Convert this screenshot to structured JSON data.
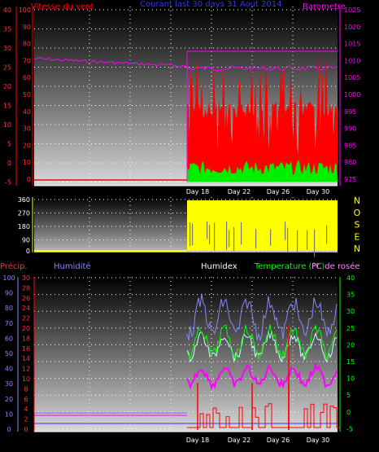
{
  "chart_data": [
    {
      "type": "line",
      "title": "Courant last 30 days 31 Aout 2014",
      "left_axis_label": "Vitesse du vent",
      "right_axis_label": "Barometre",
      "left_ticks_outer": [
        "40",
        "35",
        "30",
        "25",
        "20",
        "15",
        "10",
        "5",
        "0",
        "-5"
      ],
      "left_ticks_inner": [
        "100",
        "90",
        "80",
        "70",
        "60",
        "50",
        "40",
        "30",
        "20",
        "10",
        "0"
      ],
      "right_ticks": [
        "1025",
        "1020",
        "1015",
        "1010",
        "1005",
        "1000",
        "995",
        "990",
        "985",
        "980",
        "975"
      ],
      "x_labels": [
        "Day 18",
        "Day 22",
        "Day 26",
        "Day 30"
      ],
      "series": [
        {
          "name": "Vitesse du vent",
          "color": "#ff0000"
        },
        {
          "name": "Barometre",
          "color": "#ff00ff"
        }
      ]
    },
    {
      "type": "bar",
      "left_ticks": [
        "360",
        "270",
        "180",
        "90",
        "0"
      ],
      "right_letters": [
        "N",
        "O",
        "S",
        "E",
        "N"
      ],
      "color": "#ffff00"
    },
    {
      "type": "line",
      "labels": {
        "precip": "Précip.",
        "humidity": "Humidité",
        "humidex": "Humidex",
        "temperature": "Temperature (°C)",
        "dewpoint": "Pt. de rosée"
      },
      "humidity_ticks": [
        "100",
        "90",
        "80",
        "70",
        "60",
        "50",
        "40",
        "30",
        "20",
        "10",
        "0"
      ],
      "precip_ticks": [
        "30",
        "28",
        "26",
        "24",
        "22",
        "20",
        "18",
        "16",
        "14",
        "12",
        "10",
        "8",
        "6",
        "4",
        "2",
        "0"
      ],
      "temp_ticks": [
        "40",
        "35",
        "30",
        "25",
        "20",
        "15",
        "10",
        "5",
        "0",
        "-5"
      ],
      "x_labels": [
        "Day 18",
        "Day 22",
        "Day 26",
        "Day 30"
      ],
      "series": [
        {
          "name": "Humidité",
          "color": "#8888ff"
        },
        {
          "name": "Humidex",
          "color": "#ffffff"
        },
        {
          "name": "Temperature (°C)",
          "color": "#00ff00"
        },
        {
          "name": "Pt. de rosée",
          "color": "#ff00ff"
        },
        {
          "name": "Précip.",
          "color": "#ff0000"
        }
      ]
    }
  ]
}
